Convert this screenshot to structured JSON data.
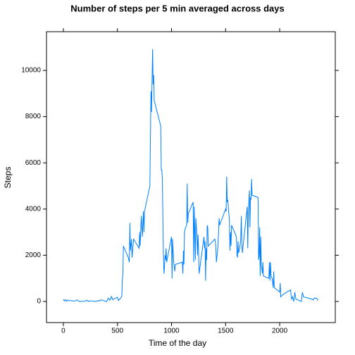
{
  "chart_data": {
    "type": "line",
    "title": "Number of steps per 5 min averaged across days",
    "x_label": "Time of the day",
    "y_label": "Steps",
    "x": [
      0,
      10,
      20,
      30,
      40,
      50,
      100,
      115,
      130,
      145,
      200,
      215,
      230,
      245,
      300,
      315,
      330,
      345,
      400,
      415,
      430,
      445,
      455,
      500,
      510,
      520,
      530,
      540,
      545,
      550,
      555,
      600,
      610,
      615,
      620,
      630,
      635,
      650,
      700,
      705,
      710,
      720,
      730,
      740,
      745,
      750,
      800,
      810,
      815,
      825,
      830,
      835,
      840,
      900,
      905,
      910,
      915,
      925,
      930,
      935,
      940,
      945,
      950,
      955,
      1000,
      1005,
      1010,
      1020,
      1030,
      1035,
      1100,
      1105,
      1110,
      1115,
      1120,
      1130,
      1140,
      1145,
      1150,
      1155,
      1200,
      1205,
      1210,
      1215,
      1220,
      1225,
      1235,
      1240,
      1245,
      1250,
      1255,
      1300,
      1305,
      1310,
      1315,
      1320,
      1325,
      1330,
      1335,
      1340,
      1400,
      1405,
      1410,
      1415,
      1430,
      1440,
      1445,
      1500,
      1505,
      1510,
      1515,
      1520,
      1530,
      1535,
      1540,
      1545,
      1550,
      1555,
      1600,
      1605,
      1610,
      1615,
      1620,
      1630,
      1640,
      1645,
      1650,
      1655,
      1700,
      1705,
      1710,
      1720,
      1725,
      1730,
      1735,
      1740,
      1745,
      1800,
      1805,
      1810,
      1815,
      1820,
      1825,
      1830,
      1840,
      1845,
      1850,
      1900,
      1905,
      1910,
      1915,
      1920,
      1930,
      1940,
      1945,
      1950,
      2000,
      2005,
      2010,
      2030,
      2100,
      2110,
      2120,
      2130,
      2140,
      2150,
      2200,
      2210,
      2220,
      2300,
      2310,
      2320,
      2330,
      2340,
      2355
    ],
    "series": [
      {
        "name": "Steps",
        "color": "#0080ff",
        "values": [
          90,
          20,
          80,
          10,
          60,
          40,
          20,
          30,
          70,
          0,
          10,
          60,
          0,
          30,
          0,
          40,
          10,
          70,
          0,
          150,
          50,
          220,
          80,
          180,
          40,
          100,
          150,
          220,
          900,
          1200,
          2400,
          1900,
          1700,
          3400,
          2200,
          2700,
          1900,
          2700,
          2300,
          3000,
          2400,
          3700,
          2800,
          3900,
          3000,
          3900,
          5000,
          9100,
          8200,
          10927,
          9400,
          9800,
          8700,
          7600,
          5700,
          5700,
          5300,
          2100,
          1200,
          1500,
          2000,
          1800,
          2300,
          1700,
          2800,
          1000,
          2700,
          1700,
          1300,
          1600,
          1700,
          1200,
          2200,
          1600,
          3000,
          3200,
          3300,
          5100,
          3400,
          3800,
          4300,
          1700,
          4100,
          3000,
          1800,
          3600,
          2800,
          2000,
          2900,
          2200,
          1200,
          2800,
          2300,
          2600,
          900,
          2300,
          1800,
          3300,
          3200,
          2400,
          2700,
          2600,
          2300,
          1700,
          2400,
          3600,
          3300,
          4000,
          3900,
          5400,
          4300,
          4400,
          3800,
          3600,
          2200,
          3000,
          2400,
          3300,
          2800,
          2000,
          1900,
          2600,
          2100,
          2300,
          2700,
          3700,
          2500,
          2100,
          4100,
          2300,
          3900,
          4800,
          3200,
          4500,
          4400,
          5300,
          4600,
          4500,
          1800,
          2000,
          3200,
          1100,
          2800,
          1600,
          1200,
          1700,
          1100,
          1000,
          1700,
          900,
          1700,
          1100,
          1000,
          600,
          1300,
          600,
          400,
          800,
          200,
          300,
          500,
          100,
          200,
          0,
          400,
          100,
          0,
          400,
          200,
          100,
          60,
          150,
          130,
          150,
          40
        ]
      }
    ],
    "xlim": [
      -156,
      2514
    ],
    "ylim": [
      -915,
      11677
    ],
    "xticks": [
      0,
      500,
      1000,
      1500,
      2000
    ],
    "yticks": [
      0,
      2000,
      4000,
      6000,
      8000,
      10000
    ]
  }
}
